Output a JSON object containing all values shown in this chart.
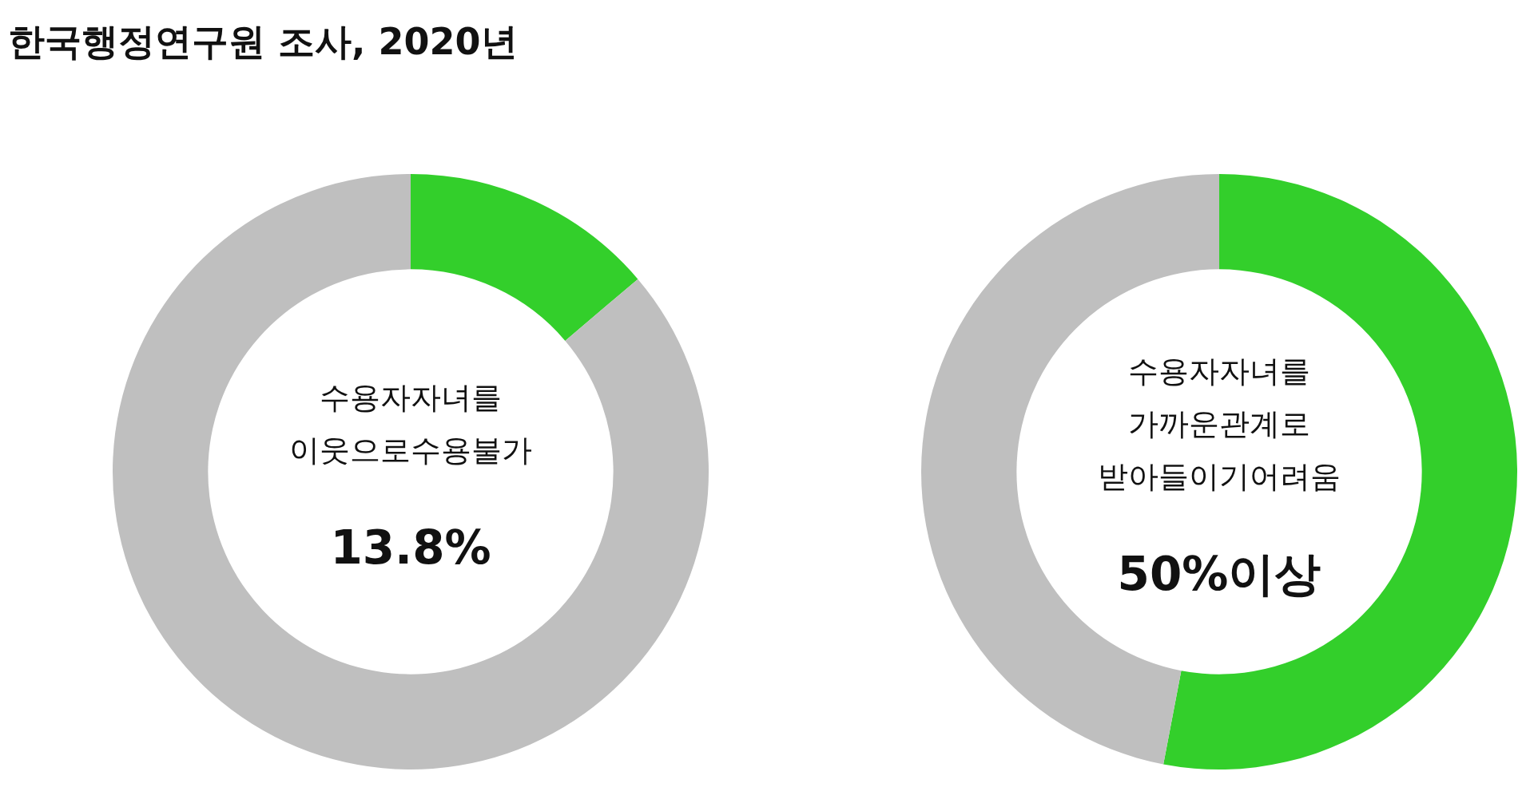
{
  "chart_data": [
    {
      "type": "donut",
      "title": "한국행정연구원 조사, 2020년",
      "categories": [
        null,
        null
      ],
      "values": [
        13.8,
        86.2
      ],
      "colors": [
        "#33cf2b",
        "#bfbfbf"
      ],
      "legend": false,
      "annotations": [
        "수용자자녀를",
        "이웃으로수용불가",
        "13.8%"
      ]
    },
    {
      "type": "donut",
      "categories": [
        null,
        null
      ],
      "values": [
        53,
        47
      ],
      "colors": [
        "#33cf2b",
        "#bfbfbf"
      ],
      "legend": false,
      "annotations": [
        "수용자자녀를",
        "가까운관계로",
        "받아들이기어려움",
        "50%이상"
      ]
    }
  ]
}
